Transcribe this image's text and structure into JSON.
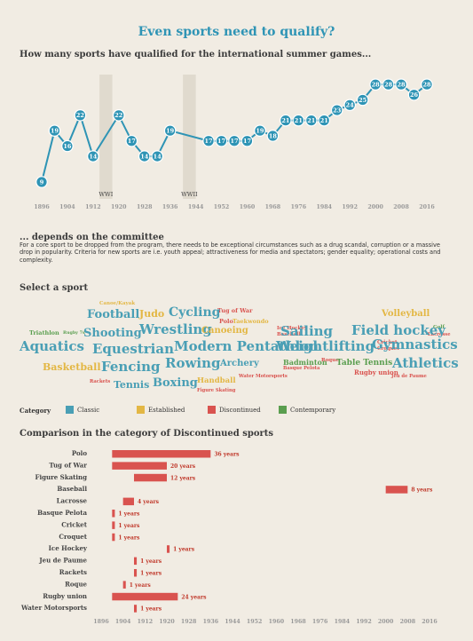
{
  "title": "Even sports need to qualify?",
  "subtitle": "How many sports have qualified for the international summer games...",
  "committee": {
    "heading": "... depends on the committee",
    "text": "For a core sport to be dropped from the program, there needs to be exceptional circumstances such as a drug scandal, corruption or a massive drop in popularity. Criteria for new sports are i.e.  youth appeal; attractiveness for media and spectators; gender equality; operational costs and complexity."
  },
  "select_heading": "Select a sport",
  "colors": {
    "accent": "#2e94b5",
    "classic": "#4a9fb5",
    "established": "#e3b744",
    "discontinued": "#d9534f",
    "contemporary": "#5a9e4f",
    "ww_band": "#e0dace"
  },
  "word_cloud": [
    {
      "text": "Canoe/Kayak",
      "cat": "established"
    },
    {
      "text": "Tug of War",
      "cat": "discontinued"
    },
    {
      "text": "Volleyball",
      "cat": "established"
    },
    {
      "text": "Football",
      "cat": "classic"
    },
    {
      "text": "Judo",
      "cat": "established"
    },
    {
      "text": "Cycling",
      "cat": "classic"
    },
    {
      "text": "Polo",
      "cat": "discontinued"
    },
    {
      "text": "Taekwondo",
      "cat": "established"
    },
    {
      "text": "Ice Hockey",
      "cat": "discontinued"
    },
    {
      "text": "Baseball",
      "cat": "discontinued"
    },
    {
      "text": "Golf",
      "cat": "contemporary"
    },
    {
      "text": "Lacrosse",
      "cat": "discontinued"
    },
    {
      "text": "Triathlon",
      "cat": "contemporary"
    },
    {
      "text": "Rugby 7s",
      "cat": "contemporary"
    },
    {
      "text": "Shooting",
      "cat": "classic"
    },
    {
      "text": "Wrestling",
      "cat": "classic"
    },
    {
      "text": "Canoeing",
      "cat": "established"
    },
    {
      "text": "Sailing",
      "cat": "classic"
    },
    {
      "text": "Field hockey",
      "cat": "classic"
    },
    {
      "text": "Aquatics",
      "cat": "classic"
    },
    {
      "text": "Equestrian",
      "cat": "classic"
    },
    {
      "text": "Modern Pentathlon",
      "cat": "classic"
    },
    {
      "text": "Weightlifting",
      "cat": "classic"
    },
    {
      "text": "Cricket",
      "cat": "discontinued"
    },
    {
      "text": "Croquet",
      "cat": "discontinued"
    },
    {
      "text": "Gymnastics",
      "cat": "classic"
    },
    {
      "text": "Basketball",
      "cat": "established"
    },
    {
      "text": "Fencing",
      "cat": "classic"
    },
    {
      "text": "Rowing",
      "cat": "classic"
    },
    {
      "text": "Archery",
      "cat": "classic"
    },
    {
      "text": "Badminton",
      "cat": "contemporary"
    },
    {
      "text": "Roque",
      "cat": "discontinued"
    },
    {
      "text": "Basque Pelota",
      "cat": "discontinued"
    },
    {
      "text": "Table Tennis",
      "cat": "contemporary"
    },
    {
      "text": "Athletics",
      "cat": "classic"
    },
    {
      "text": "Rugby union",
      "cat": "discontinued"
    },
    {
      "text": "Jeu de Paume",
      "cat": "discontinued"
    },
    {
      "text": "Tennis",
      "cat": "classic"
    },
    {
      "text": "Boxing",
      "cat": "classic"
    },
    {
      "text": "Handball",
      "cat": "established"
    },
    {
      "text": "Water Motorsports",
      "cat": "discontinued"
    },
    {
      "text": "Rackets",
      "cat": "discontinued"
    },
    {
      "text": "Figure Skating",
      "cat": "discontinued"
    }
  ],
  "legend": {
    "label": "Category",
    "items": [
      {
        "name": "Classic",
        "color": "#4a9fb5"
      },
      {
        "name": "Established",
        "color": "#e3b744"
      },
      {
        "name": "Discontinued",
        "color": "#d9534f"
      },
      {
        "name": "Contemporary",
        "color": "#5a9e4f"
      }
    ]
  },
  "comparison_heading": "Comparison in the category of Discontinued sports",
  "chart_data": [
    {
      "type": "line",
      "x": [
        1896,
        1900,
        1904,
        1908,
        1912,
        1920,
        1924,
        1928,
        1932,
        1936,
        1948,
        1952,
        1956,
        1960,
        1964,
        1968,
        1972,
        1976,
        1980,
        1984,
        1988,
        1992,
        1996,
        2000,
        2004,
        2008,
        2012,
        2016
      ],
      "values": [
        9,
        19,
        16,
        22,
        14,
        22,
        17,
        14,
        14,
        19,
        17,
        17,
        17,
        17,
        19,
        18,
        21,
        21,
        21,
        21,
        23,
        24,
        25,
        28,
        28,
        28,
        26,
        28
      ],
      "xticks": [
        1896,
        1904,
        1912,
        1920,
        1928,
        1936,
        1944,
        1952,
        1960,
        1968,
        1976,
        1984,
        1992,
        2000,
        2008,
        2016
      ],
      "annotations": [
        {
          "label": "WWI",
          "from": 1914,
          "to": 1918
        },
        {
          "label": "WWII",
          "from": 1940,
          "to": 1944
        }
      ]
    },
    {
      "type": "bar",
      "orientation": "horizontal",
      "category": "Discontinued",
      "xticks": [
        1896,
        1904,
        1912,
        1920,
        1928,
        1936,
        1944,
        1952,
        1960,
        1968,
        1976,
        1984,
        1992,
        2000,
        2008,
        2016
      ],
      "unit": "years",
      "rows": [
        {
          "sport": "Polo",
          "start": 1900,
          "end": 1936,
          "years": 36
        },
        {
          "sport": "Tug of War",
          "start": 1900,
          "end": 1920,
          "years": 20
        },
        {
          "sport": "Figure Skating",
          "start": 1908,
          "end": 1920,
          "years": 12
        },
        {
          "sport": "Baseball",
          "start": 2000,
          "end": 2008,
          "years": 8
        },
        {
          "sport": "Lacrosse",
          "start": 1904,
          "end": 1908,
          "years": 4
        },
        {
          "sport": "Basque Pelota",
          "start": 1900,
          "end": 1901,
          "years": 1
        },
        {
          "sport": "Cricket",
          "start": 1900,
          "end": 1901,
          "years": 1
        },
        {
          "sport": "Croquet",
          "start": 1900,
          "end": 1901,
          "years": 1
        },
        {
          "sport": "Ice Hockey",
          "start": 1920,
          "end": 1921,
          "years": 1
        },
        {
          "sport": "Jeu de Paume",
          "start": 1908,
          "end": 1909,
          "years": 1
        },
        {
          "sport": "Rackets",
          "start": 1908,
          "end": 1909,
          "years": 1
        },
        {
          "sport": "Roque",
          "start": 1904,
          "end": 1905,
          "years": 1
        },
        {
          "sport": "Rugby union",
          "start": 1900,
          "end": 1924,
          "years": 24
        },
        {
          "sport": "Water Motorsports",
          "start": 1908,
          "end": 1909,
          "years": 1
        }
      ]
    }
  ]
}
